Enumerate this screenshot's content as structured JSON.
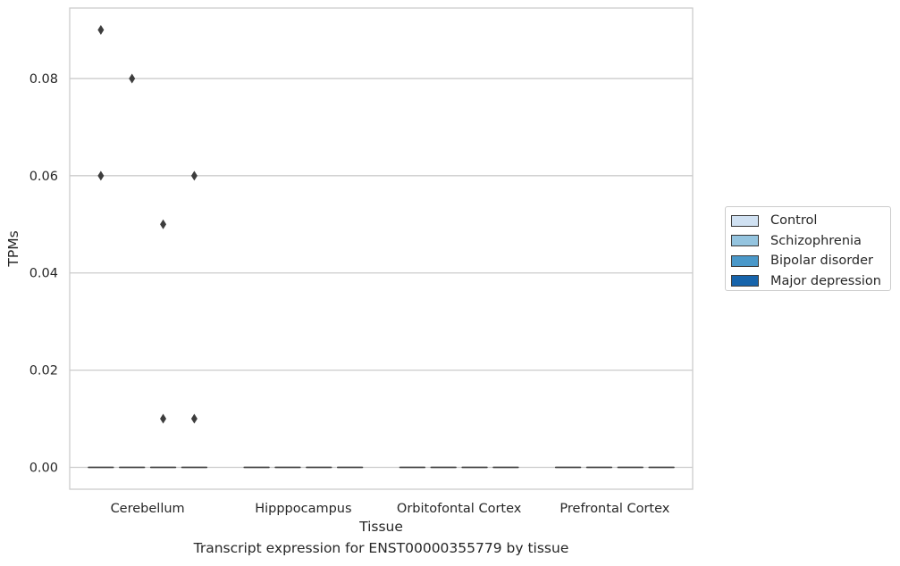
{
  "chart_data": {
    "type": "box",
    "title": "",
    "caption": "Transcript expression for ENST00000355779 by tissue",
    "xlabel": "Tissue",
    "ylabel": "TPMs",
    "categories": [
      "Cerebellum",
      "Hipppocampus",
      "Orbitofontal Cortex",
      "Prefrontal Cortex"
    ],
    "ylim": [
      -0.0045,
      0.0945
    ],
    "yticks": [
      0.0,
      0.02,
      0.04,
      0.06,
      0.08
    ],
    "ytick_labels": [
      "0.00",
      "0.02",
      "0.04",
      "0.06",
      "0.08"
    ],
    "grid": true,
    "legend_position": "right",
    "series": [
      {
        "name": "Control",
        "color": "#d0e1f2",
        "median": [
          0,
          0,
          0,
          0
        ],
        "q1": [
          0,
          0,
          0,
          0
        ],
        "q3": [
          0,
          0,
          0,
          0
        ],
        "outliers": [
          [
            0.06,
            0.09
          ],
          [],
          [],
          []
        ]
      },
      {
        "name": "Schizophrenia",
        "color": "#94c4df",
        "median": [
          0,
          0,
          0,
          0
        ],
        "q1": [
          0,
          0,
          0,
          0
        ],
        "q3": [
          0,
          0,
          0,
          0
        ],
        "outliers": [
          [
            0.08
          ],
          [],
          [],
          []
        ]
      },
      {
        "name": "Bipolar disorder",
        "color": "#4a98c9",
        "median": [
          0,
          0,
          0,
          0
        ],
        "q1": [
          0,
          0,
          0,
          0
        ],
        "q3": [
          0,
          0,
          0,
          0
        ],
        "outliers": [
          [
            0.01,
            0.05
          ],
          [],
          [],
          []
        ]
      },
      {
        "name": "Major depression",
        "color": "#1764ab",
        "median": [
          0,
          0,
          0,
          0
        ],
        "q1": [
          0,
          0,
          0,
          0
        ],
        "q3": [
          0,
          0,
          0,
          0
        ],
        "outliers": [
          [
            0.01,
            0.06
          ],
          [],
          [],
          []
        ]
      }
    ]
  }
}
